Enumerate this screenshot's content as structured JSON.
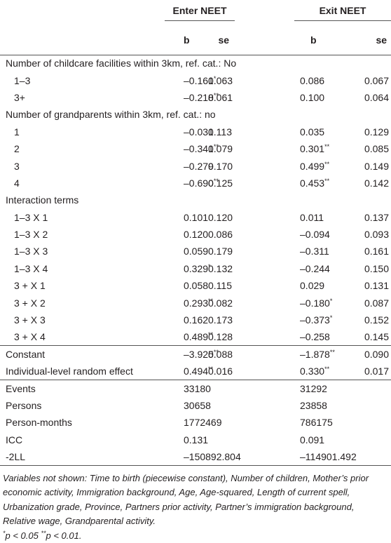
{
  "table": {
    "group_headers": [
      "Enter NEET",
      "Exit NEET"
    ],
    "sub_headers": [
      "b",
      "se",
      "b",
      "se"
    ],
    "sections": [
      {
        "title": "Number of childcare facilities within 3km, ref. cat.: No",
        "rows": [
          [
            "1–3",
            "–0.161*",
            "0.063",
            "0.086",
            "0.067"
          ],
          [
            "3+",
            "–0.218**",
            "0.061",
            "0.100",
            "0.064"
          ]
        ]
      },
      {
        "title": "Number of grandparents within 3km, ref. cat.: no",
        "rows": [
          [
            "1",
            "–0.031",
            "0.113",
            "0.035",
            "0.129"
          ],
          [
            "2",
            "–0.341**",
            "0.079",
            "0.301**",
            "0.085"
          ],
          [
            "3",
            "–0.279",
            "0.170",
            "0.499**",
            "0.149"
          ],
          [
            "4",
            "–0.690**",
            "0.125",
            "0.453**",
            "0.142"
          ]
        ]
      },
      {
        "title": "Interaction terms",
        "rows": [
          [
            "1–3 X 1",
            "0.101",
            "0.120",
            "0.011",
            "0.137"
          ],
          [
            "1–3 X 2",
            "0.120",
            "0.086",
            "–0.094",
            "0.093"
          ],
          [
            "1–3 X 3",
            "0.059",
            "0.179",
            "–0.311",
            "0.161"
          ],
          [
            "1–3 X 4",
            "0.329*",
            "0.132",
            "–0.244",
            "0.150"
          ],
          [
            "3 + X 1",
            "0.058",
            "0.115",
            "0.029",
            "0.131"
          ],
          [
            "3 + X 2",
            "0.293**",
            "0.082",
            "–0.180*",
            "0.087"
          ],
          [
            "3 + X 3",
            "0.162",
            "0.173",
            "–0.373*",
            "0.152"
          ],
          [
            "3 + X 4",
            "0.489**",
            "0.128",
            "–0.258",
            "0.145"
          ]
        ]
      }
    ],
    "model_rows": [
      [
        "Constant",
        "–3.925**",
        "0.088",
        "–1.878**",
        "0.090"
      ],
      [
        "Individual-level random effect",
        "0.494**",
        "0.016",
        "0.330**",
        "0.017"
      ]
    ],
    "stats_rows": [
      [
        "Events",
        "33180",
        "31292"
      ],
      [
        "Persons",
        "30658",
        "23858"
      ],
      [
        "Person-months",
        "1772469",
        "786175"
      ],
      [
        "ICC",
        "0.131",
        "0.091"
      ],
      [
        "-2LL",
        "–150892.804",
        "–114901.492"
      ]
    ],
    "note": "Variables not shown: Time to birth (piecewise constant), Number of children, Mother’s prior economic activity, Immigration background, Age, Age-squared, Length of current spell, Urbanization grade, Province, Partners prior activity, Partner’s immigration background, Relative wage, Grandparental activity.",
    "footnote": "*p < 0.05 **p < 0.01."
  }
}
